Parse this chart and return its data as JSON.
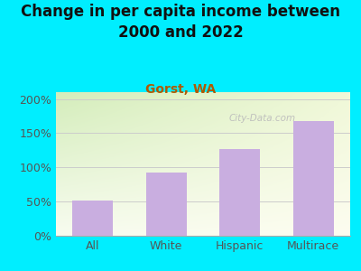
{
  "title": "Change in per capita income between\n2000 and 2022",
  "subtitle": "Gorst, WA",
  "categories": [
    "All",
    "White",
    "Hispanic",
    "Multirace"
  ],
  "values": [
    52,
    93,
    127,
    168
  ],
  "bar_color": "#c9aee0",
  "title_fontsize": 12,
  "subtitle_fontsize": 10,
  "subtitle_color": "#b05a00",
  "tick_label_fontsize": 9,
  "ylim": [
    0,
    210
  ],
  "yticks": [
    0,
    50,
    100,
    150,
    200
  ],
  "ytick_labels": [
    "0%",
    "50%",
    "100%",
    "150%",
    "200%"
  ],
  "bg_outer": "#00eeff",
  "bg_plot_corner_tl": "#d4edbb",
  "bg_plot_corner_br": "#fdfdf0",
  "watermark": "City-Data.com",
  "grid_color": "#cccccc",
  "title_color": "#111111"
}
